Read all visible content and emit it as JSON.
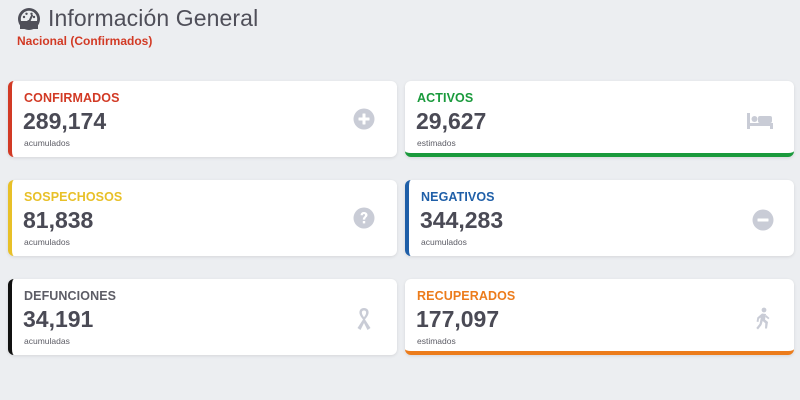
{
  "header": {
    "title": "Información General",
    "subtitle": "Nacional (Confirmados)"
  },
  "cards": {
    "confirmados": {
      "label": "CONFIRMADOS",
      "value": "289,174",
      "note": "acumulados",
      "color": "#d23a25",
      "icon": "plus-circle-icon"
    },
    "activos": {
      "label": "ACTIVOS",
      "value": "29,627",
      "note": "estimados",
      "color": "#1a9a3c",
      "icon": "bed-icon"
    },
    "sospechosos": {
      "label": "SOSPECHOSOS",
      "value": "81,838",
      "note": "acumulados",
      "color": "#e8c028",
      "icon": "question-circle-icon"
    },
    "negativos": {
      "label": "NEGATIVOS",
      "value": "344,283",
      "note": "acumulados",
      "color": "#1f5fa8",
      "icon": "minus-circle-icon"
    },
    "defunciones": {
      "label": "DEFUNCIONES",
      "value": "34,191",
      "note": "acumuladas",
      "color": "#111111",
      "icon": "ribbon-icon"
    },
    "recuperados": {
      "label": "RECUPERADOS",
      "value": "177,097",
      "note": "estimados",
      "color": "#ec7c1c",
      "icon": "walking-person-icon"
    }
  },
  "colors": {
    "background": "#eceef1",
    "label_default": "#5d5d66",
    "icon_gray": "#c9ccd6"
  }
}
